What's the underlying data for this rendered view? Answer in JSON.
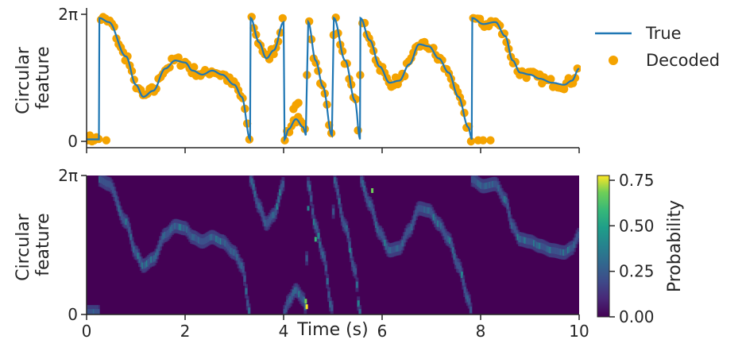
{
  "chart_data": [
    {
      "type": "line+scatter",
      "ylabel": "Circular\nfeature",
      "ylabel_lines": [
        "Circular",
        "feature"
      ],
      "x_range": [
        0,
        10
      ],
      "y_range": [
        0,
        6.2832
      ],
      "y_ticks": [
        {
          "value": 0,
          "label": "0"
        },
        {
          "value": 6.2832,
          "label": "2π"
        }
      ],
      "x_ticks_unlabeled": [
        0,
        2,
        4,
        6,
        8,
        10
      ],
      "legend": {
        "placement": "right",
        "entries": [
          {
            "label": "True",
            "marker": "line",
            "color": "#1f77b4"
          },
          {
            "label": "Decoded",
            "marker": "dot",
            "color": "#f4a300"
          }
        ]
      },
      "series_knots": [
        [
          0.0,
          0.1
        ],
        [
          0.25,
          0.1
        ],
        [
          0.26,
          6.1
        ],
        [
          0.45,
          5.9
        ],
        [
          0.8,
          4.2
        ],
        [
          1.0,
          2.8
        ],
        [
          1.15,
          2.2
        ],
        [
          1.35,
          2.5
        ],
        [
          1.6,
          3.6
        ],
        [
          1.8,
          4.0
        ],
        [
          2.0,
          3.9
        ],
        [
          2.15,
          3.5
        ],
        [
          2.35,
          3.3
        ],
        [
          2.55,
          3.5
        ],
        [
          2.75,
          3.3
        ],
        [
          3.0,
          2.8
        ],
        [
          3.15,
          2.2
        ],
        [
          3.32,
          0.1
        ],
        [
          3.33,
          6.1
        ],
        [
          3.5,
          4.9
        ],
        [
          3.65,
          4.1
        ],
        [
          3.8,
          4.5
        ],
        [
          4.0,
          5.9
        ],
        [
          4.02,
          0.1
        ],
        [
          4.1,
          0.6
        ],
        [
          4.25,
          1.1
        ],
        [
          4.4,
          0.7
        ],
        [
          4.45,
          0.3
        ],
        [
          4.5,
          5.9
        ],
        [
          4.65,
          4.0
        ],
        [
          4.8,
          2.7
        ],
        [
          4.98,
          0.3
        ],
        [
          5.02,
          6.1
        ],
        [
          5.25,
          4.0
        ],
        [
          5.45,
          2.0
        ],
        [
          5.55,
          0.1
        ],
        [
          5.56,
          6.1
        ],
        [
          5.75,
          5.0
        ],
        [
          5.95,
          3.7
        ],
        [
          6.15,
          2.9
        ],
        [
          6.35,
          3.0
        ],
        [
          6.55,
          3.8
        ],
        [
          6.75,
          4.8
        ],
        [
          6.95,
          4.7
        ],
        [
          7.15,
          4.1
        ],
        [
          7.35,
          3.4
        ],
        [
          7.55,
          2.2
        ],
        [
          7.75,
          0.7
        ],
        [
          7.82,
          0.1
        ],
        [
          7.83,
          6.1
        ],
        [
          8.05,
          5.8
        ],
        [
          8.3,
          5.9
        ],
        [
          8.5,
          5.2
        ],
        [
          8.65,
          4.0
        ],
        [
          8.8,
          3.4
        ],
        [
          9.0,
          3.3
        ],
        [
          9.2,
          3.1
        ],
        [
          9.45,
          2.9
        ],
        [
          9.7,
          2.8
        ],
        [
          9.85,
          3.0
        ],
        [
          10.0,
          3.6
        ]
      ],
      "series": [
        {
          "name": "True",
          "style": "line",
          "color": "#1f77b4"
        },
        {
          "name": "Decoded",
          "style": "scatter",
          "color": "#f4a300",
          "note": "decoded points follow the true trajectory with small noise"
        }
      ]
    },
    {
      "type": "heatmap",
      "xlabel": "Time (s)",
      "ylabel": "Circular\nfeature",
      "ylabel_lines": [
        "Circular",
        "feature"
      ],
      "x_range": [
        0,
        10
      ],
      "y_range": [
        0,
        6.2832
      ],
      "x_ticks": [
        {
          "value": 0,
          "label": "0"
        },
        {
          "value": 2,
          "label": "2"
        },
        {
          "value": 4,
          "label": "4"
        },
        {
          "value": 6,
          "label": "6"
        },
        {
          "value": 8,
          "label": "8"
        },
        {
          "value": 10,
          "label": "10"
        }
      ],
      "y_ticks": [
        {
          "value": 0,
          "label": "0"
        },
        {
          "value": 6.2832,
          "label": "2π"
        }
      ],
      "colormap": "viridis",
      "background_color": "#440154",
      "colorbar": {
        "label": "Probability",
        "range": [
          0,
          0.75
        ],
        "ticks": [
          {
            "value": 0.0,
            "label": "0.00"
          },
          {
            "value": 0.25,
            "label": "0.25"
          },
          {
            "value": 0.5,
            "label": "0.50"
          },
          {
            "value": 0.75,
            "label": "0.75"
          }
        ]
      }
    }
  ]
}
